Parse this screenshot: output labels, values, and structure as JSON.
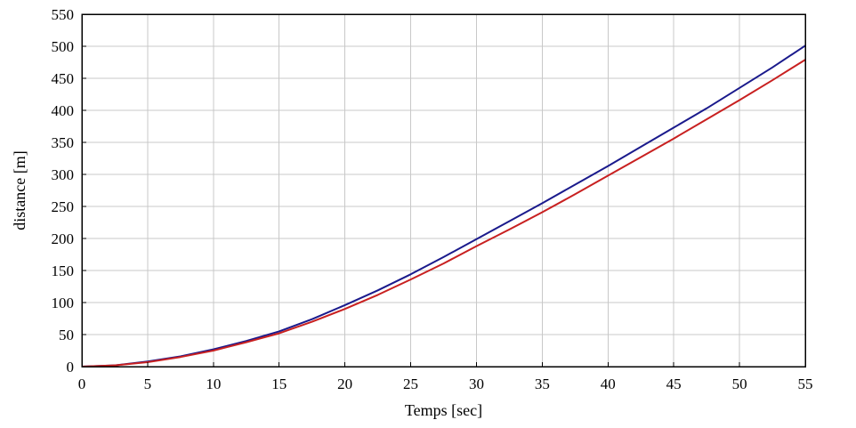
{
  "chart_data": {
    "type": "line",
    "xlabel": "Temps [sec]",
    "ylabel": "distance [m]",
    "xlim": [
      0,
      55
    ],
    "ylim": [
      0,
      550
    ],
    "xticks": [
      0,
      5,
      10,
      15,
      20,
      25,
      30,
      35,
      40,
      45,
      50,
      55
    ],
    "yticks": [
      0,
      50,
      100,
      150,
      200,
      250,
      300,
      350,
      400,
      450,
      500,
      550
    ],
    "grid": true,
    "legend": "none",
    "series": [
      {
        "color": "#1a1a8c",
        "x": [
          0,
          2.5,
          5,
          7.5,
          10,
          12.5,
          15,
          17.5,
          20,
          22.5,
          25,
          27.5,
          30,
          32.5,
          35,
          37.5,
          40,
          42.5,
          45,
          47.5,
          50,
          52.5,
          55
        ],
        "y": [
          0,
          2,
          8,
          16,
          27,
          40,
          55,
          74,
          96,
          119,
          144,
          171,
          199,
          227,
          255,
          284,
          313,
          343,
          373,
          403,
          435,
          467,
          501
        ]
      },
      {
        "color": "#c82020",
        "x": [
          0,
          2.5,
          5,
          7.5,
          10,
          12.5,
          15,
          17.5,
          20,
          22.5,
          25,
          27.5,
          30,
          32.5,
          35,
          37.5,
          40,
          42.5,
          45,
          47.5,
          50,
          52.5,
          55
        ],
        "y": [
          0,
          2,
          7,
          15,
          25,
          38,
          52,
          70,
          90,
          112,
          136,
          161,
          188,
          214,
          241,
          269,
          298,
          327,
          356,
          386,
          416,
          447,
          479
        ]
      }
    ]
  }
}
